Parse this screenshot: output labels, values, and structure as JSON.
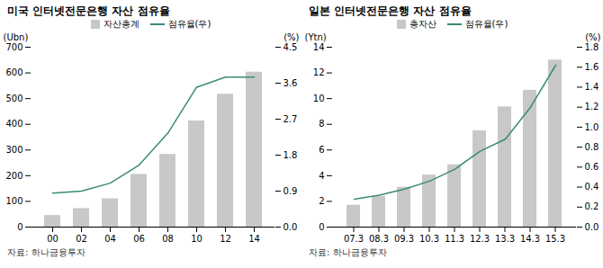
{
  "chart_data": [
    {
      "type": "bar",
      "title": "미국 인터넷전문은행 자산 점유율",
      "ylabel": "(Ubn)",
      "y2label": "(%)",
      "annotations": [
        "자료: 하나금융투자"
      ],
      "categories": [
        "00",
        "02",
        "04",
        "06",
        "08",
        "10",
        "12",
        "14"
      ],
      "series": [
        {
          "name": "자산총계",
          "type": "bar",
          "color": "#c8c8c8",
          "values": [
            45,
            72,
            110,
            205,
            283,
            413,
            517,
            603
          ]
        },
        {
          "name": "점유율(우)",
          "type": "line",
          "axis": "y2",
          "color": "#3a8a7a",
          "values": [
            0.85,
            0.9,
            1.1,
            1.55,
            2.35,
            3.5,
            3.75,
            3.75
          ]
        }
      ],
      "ylim": [
        0,
        700
      ],
      "yticks": [
        0,
        100,
        200,
        300,
        400,
        500,
        600,
        700
      ],
      "y2lim": [
        0,
        4.5
      ],
      "y2ticks": [
        {
          "value": 0,
          "label": "0.0"
        },
        0.9,
        1.8,
        2.7,
        3.6,
        4.5
      ],
      "legend": "top"
    },
    {
      "type": "bar",
      "title": "일본 인터넷전문은행 자산 점유율",
      "ylabel": "(Ytn)",
      "y2label": "(%)",
      "annotations": [
        "자료: 하나금융투자"
      ],
      "categories": [
        "07.3",
        "08.3",
        "09.3",
        "10.3",
        "11.3",
        "12.3",
        "13.3",
        "14.3",
        "15.3"
      ],
      "series": [
        {
          "name": "총자산",
          "type": "bar",
          "color": "#c8c8c8",
          "values": [
            1.7,
            2.4,
            3.1,
            4.05,
            4.85,
            7.5,
            9.35,
            10.65,
            13.0
          ]
        },
        {
          "name": "점유율(우)",
          "type": "line",
          "axis": "y2",
          "color": "#3a8a7a",
          "values": [
            0.28,
            0.32,
            0.38,
            0.46,
            0.58,
            0.76,
            0.88,
            1.2,
            1.62
          ]
        }
      ],
      "ylim": [
        0,
        14
      ],
      "yticks": [
        0,
        2,
        4,
        6,
        8,
        10,
        12,
        14
      ],
      "y2lim": [
        0,
        1.8
      ],
      "y2ticks": [
        {
          "value": 0.0,
          "label": "0.0"
        },
        0.2,
        0.4,
        0.6,
        0.8,
        {
          "value": 1.0,
          "label": "1.0"
        },
        1.2,
        1.4,
        1.6,
        1.8
      ],
      "legend": "top"
    }
  ]
}
